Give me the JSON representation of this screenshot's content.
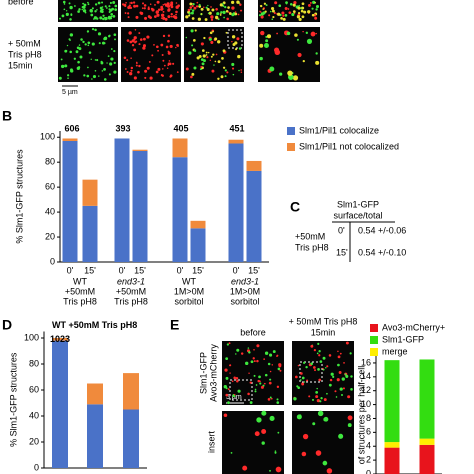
{
  "panel_labels": {
    "b": "B",
    "c": "C",
    "d": "D",
    "e": "E"
  },
  "panel_a": {
    "row_labels": [
      "before",
      [
        "+ 50mM",
        "Tris pH8",
        "15min"
      ]
    ],
    "scale": "5 µm"
  },
  "table_c": {
    "header": [
      "Slm1-GFP",
      "surface/total"
    ],
    "condition": [
      "+50mM",
      "Tris pH8"
    ],
    "rows": [
      [
        "0'",
        "0.54 +/-0.06"
      ],
      [
        "15'",
        "0.54 +/-0.10"
      ]
    ]
  },
  "panel_e": {
    "columns": [
      "before",
      [
        "+ 50mM Tris pH8",
        "15min"
      ]
    ],
    "row_label": [
      "Slm1-GFP",
      "Avo3-mCherry"
    ],
    "inset_label": "insert",
    "scale": "5 µm"
  },
  "chart_data": [
    {
      "type": "bar",
      "stacked": true,
      "y_label": "% Slm1-GFP structures",
      "categories": [
        "0'",
        "15'",
        "0'",
        "15'",
        "0'",
        "15'",
        "0'",
        "15'"
      ],
      "groups": [
        {
          "lines": [
            "WT",
            "+50mM",
            "Tris pH8"
          ],
          "count": 606,
          "italic": false
        },
        {
          "lines": [
            "end3-1",
            "+50mM",
            "Tris pH8"
          ],
          "count": 393,
          "italic": true
        },
        {
          "lines": [
            "WT",
            "1M>0M",
            "sorbitol"
          ],
          "count": 405,
          "italic": false
        },
        {
          "lines": [
            "end3-1",
            "1M>0M",
            "sorbitol"
          ],
          "count": 451,
          "italic": true
        }
      ],
      "series": [
        {
          "name": "Slm1/Pil1 colocalize",
          "color": "#4a72c8",
          "values": [
            97,
            45,
            99,
            89,
            84,
            27,
            95,
            73
          ]
        },
        {
          "name": "Slm1/Pil1 not colocalized",
          "color": "#f08a3c",
          "values": [
            2,
            21,
            0,
            1,
            15,
            6,
            3,
            8
          ]
        }
      ],
      "ylim": [
        0,
        105
      ],
      "yticks": [
        0,
        20,
        40,
        60,
        80,
        100
      ]
    },
    {
      "type": "bar",
      "stacked": true,
      "title": "WT +50mM Tris pH8",
      "count": 1023,
      "y_label": "% Slm1-GFP structures",
      "categories": [
        null,
        null,
        null
      ],
      "series": [
        {
          "color": "#4a72c8",
          "values": [
            98,
            49,
            45
          ]
        },
        {
          "color": "#f08a3c",
          "values": [
            2,
            16,
            28
          ]
        }
      ],
      "ylim": [
        0,
        105
      ],
      "yticks": [
        0,
        20,
        40,
        60,
        80,
        100
      ]
    },
    {
      "type": "bar",
      "stacked": true,
      "y_label": "of structures per half-cell",
      "categories": [
        null,
        null
      ],
      "series": [
        {
          "name": "Avo3-mCherry+",
          "color": "#e8141c",
          "values": [
            3.8,
            4.2
          ]
        },
        {
          "name": "Slm1-GFP",
          "color": "#33dd11",
          "values": [
            11.8,
            11.4
          ]
        },
        {
          "name": "merge",
          "color": "#ffee00",
          "values": [
            0.8,
            0.9
          ]
        }
      ],
      "stack_order": [
        0,
        2,
        1
      ],
      "ylim": [
        0,
        17
      ],
      "yticks": [
        0,
        2,
        4,
        6,
        8,
        10,
        12,
        14,
        16
      ]
    }
  ]
}
